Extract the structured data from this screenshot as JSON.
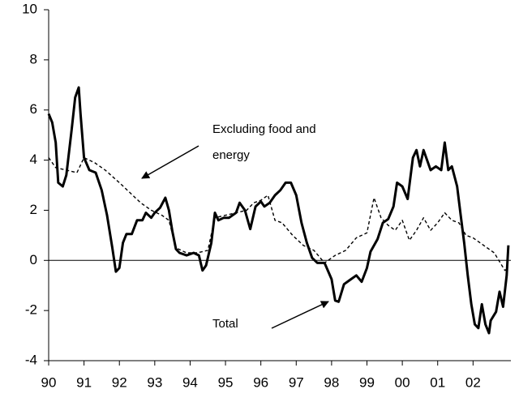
{
  "chart_data": {
    "type": "line",
    "xlim": [
      1990,
      2003.07
    ],
    "xticks": [
      {
        "value": 1990,
        "label": "90"
      },
      {
        "value": 1991,
        "label": "91"
      },
      {
        "value": 1992,
        "label": "92"
      },
      {
        "value": 1993,
        "label": "93"
      },
      {
        "value": 1994,
        "label": "94"
      },
      {
        "value": 1995,
        "label": "95"
      },
      {
        "value": 1996,
        "label": "96"
      },
      {
        "value": 1997,
        "label": "97"
      },
      {
        "value": 1998,
        "label": "98"
      },
      {
        "value": 1999,
        "label": "99"
      },
      {
        "value": 2000,
        "label": "00"
      },
      {
        "value": 2001,
        "label": "01"
      },
      {
        "value": 2002,
        "label": "02"
      }
    ],
    "ylim": [
      -4,
      10
    ],
    "yticks": [
      -4,
      -2,
      0,
      2,
      4,
      6,
      8,
      10
    ],
    "hline": 0,
    "grid": false,
    "series": [
      {
        "name": "Total",
        "color": "#000000",
        "dash": "solid",
        "x": [
          1990.0,
          1990.1,
          1990.2,
          1990.27,
          1990.4,
          1990.5,
          1990.65,
          1990.75,
          1990.85,
          1990.9,
          1991.0,
          1991.15,
          1991.33,
          1991.5,
          1991.65,
          1991.8,
          1991.9,
          1992.0,
          1992.1,
          1992.2,
          1992.35,
          1992.5,
          1992.65,
          1992.75,
          1992.9,
          1993.0,
          1993.15,
          1993.3,
          1993.4,
          1993.5,
          1993.6,
          1993.7,
          1993.9,
          1994.1,
          1994.25,
          1994.35,
          1994.45,
          1994.6,
          1994.7,
          1994.8,
          1994.95,
          1995.1,
          1995.3,
          1995.4,
          1995.55,
          1995.7,
          1995.85,
          1996.0,
          1996.1,
          1996.25,
          1996.4,
          1996.55,
          1996.7,
          1996.85,
          1997.0,
          1997.15,
          1997.3,
          1997.45,
          1997.6,
          1997.8,
          1998.0,
          1998.1,
          1998.2,
          1998.35,
          1998.5,
          1998.7,
          1998.85,
          1999.0,
          1999.1,
          1999.3,
          1999.45,
          1999.6,
          1999.75,
          1999.85,
          2000.0,
          2000.15,
          2000.3,
          2000.4,
          2000.5,
          2000.6,
          2000.8,
          2000.95,
          2001.1,
          2001.2,
          2001.3,
          2001.4,
          2001.55,
          2001.65,
          2001.75,
          2001.85,
          2001.95,
          2002.05,
          2002.15,
          2002.25,
          2002.35,
          2002.45,
          2002.5,
          2002.65,
          2002.75,
          2002.85,
          2002.95,
          2003.0
        ],
        "values": [
          5.85,
          5.5,
          4.7,
          3.1,
          2.95,
          3.4,
          5.2,
          6.5,
          6.9,
          5.85,
          4.1,
          3.6,
          3.5,
          2.8,
          1.8,
          0.5,
          -0.45,
          -0.3,
          0.7,
          1.05,
          1.05,
          1.6,
          1.6,
          1.9,
          1.7,
          1.9,
          2.1,
          2.5,
          2.0,
          1.15,
          0.45,
          0.3,
          0.2,
          0.3,
          0.2,
          -0.4,
          -0.2,
          0.7,
          1.9,
          1.6,
          1.7,
          1.7,
          1.9,
          2.3,
          2.0,
          1.25,
          2.15,
          2.35,
          2.15,
          2.3,
          2.6,
          2.8,
          3.1,
          3.1,
          2.6,
          1.5,
          0.7,
          0.1,
          -0.1,
          -0.1,
          -0.75,
          -1.6,
          -1.65,
          -0.95,
          -0.8,
          -0.6,
          -0.85,
          -0.3,
          0.35,
          0.85,
          1.5,
          1.65,
          2.15,
          3.1,
          2.95,
          2.45,
          4.1,
          4.4,
          3.75,
          4.4,
          3.6,
          3.75,
          3.6,
          4.7,
          3.6,
          3.75,
          2.95,
          1.8,
          0.7,
          -0.6,
          -1.75,
          -2.55,
          -2.7,
          -1.75,
          -2.55,
          -2.9,
          -2.4,
          -2.05,
          -1.25,
          -1.85,
          -0.6,
          0.6
        ]
      },
      {
        "name": "Excluding food and energy",
        "color": "#000000",
        "dash": "dashed",
        "x": [
          1990.0,
          1990.2,
          1990.5,
          1990.8,
          1991.0,
          1991.3,
          1991.6,
          1992.0,
          1992.3,
          1992.6,
          1992.9,
          1993.2,
          1993.4,
          1993.6,
          1993.9,
          1994.2,
          1994.5,
          1994.7,
          1995.0,
          1995.3,
          1995.6,
          1995.8,
          1996.0,
          1996.2,
          1996.4,
          1996.6,
          1996.9,
          1997.2,
          1997.5,
          1997.8,
          1998.1,
          1998.4,
          1998.7,
          1999.0,
          1999.2,
          1999.4,
          1999.6,
          1999.8,
          2000.0,
          2000.2,
          2000.4,
          2000.6,
          2000.8,
          2001.0,
          2001.2,
          2001.4,
          2001.6,
          2001.8,
          2002.0,
          2002.3,
          2002.6,
          2002.9,
          2003.0
        ],
        "values": [
          4.1,
          3.7,
          3.6,
          3.5,
          4.1,
          3.9,
          3.6,
          3.1,
          2.7,
          2.3,
          2.0,
          1.8,
          1.6,
          0.5,
          0.3,
          0.3,
          0.4,
          1.7,
          1.8,
          1.9,
          2.0,
          2.3,
          2.4,
          2.6,
          1.6,
          1.5,
          1.0,
          0.6,
          0.4,
          -0.1,
          0.2,
          0.4,
          0.9,
          1.1,
          2.5,
          1.7,
          1.4,
          1.2,
          1.6,
          0.8,
          1.2,
          1.7,
          1.2,
          1.5,
          1.9,
          1.6,
          1.5,
          1.0,
          0.9,
          0.6,
          0.3,
          -0.4,
          -0.3
        ]
      }
    ],
    "annotations": [
      {
        "lines": [
          "Excluding food and",
          "energy"
        ]
      },
      {
        "lines": [
          "Total"
        ]
      }
    ]
  }
}
